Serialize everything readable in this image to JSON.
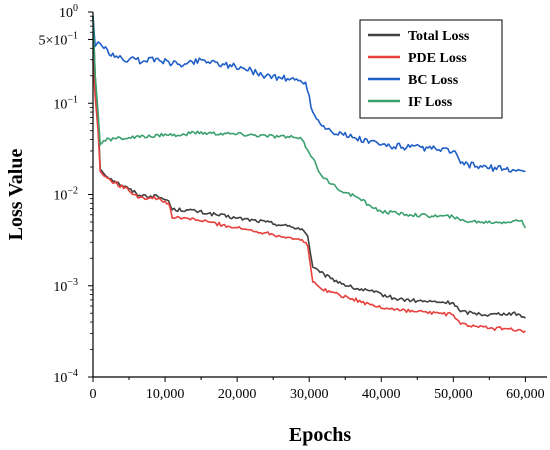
{
  "chart_data": {
    "type": "line",
    "title": "",
    "xlabel": "Epochs",
    "ylabel": "Loss Value",
    "xlim": [
      0,
      63000
    ],
    "ylim": [
      0.0001,
      1
    ],
    "yscale": "log",
    "grid": false,
    "legend_position": "top-right",
    "x_ticks": [
      {
        "value": 0,
        "label": "0"
      },
      {
        "value": 10000,
        "label": "10,000"
      },
      {
        "value": 20000,
        "label": "20,000"
      },
      {
        "value": 30000,
        "label": "30,000"
      },
      {
        "value": 40000,
        "label": "40,000"
      },
      {
        "value": 50000,
        "label": "50,000"
      },
      {
        "value": 60000,
        "label": "60,000"
      }
    ],
    "y_ticks": [
      {
        "value": 1,
        "label": "10",
        "exp": "0"
      },
      {
        "value": 0.5,
        "label": "5×10",
        "exp": "−1"
      },
      {
        "value": 0.1,
        "label": "10",
        "exp": "−1"
      },
      {
        "value": 0.01,
        "label": "10",
        "exp": "−2"
      },
      {
        "value": 0.001,
        "label": "10",
        "exp": "−3"
      },
      {
        "value": 0.0001,
        "label": "10",
        "exp": "−4"
      }
    ],
    "series": [
      {
        "name": "Total Loss",
        "color": "#404040",
        "x": [
          0,
          300,
          700,
          1000,
          1500,
          3000,
          5000,
          6500,
          9000,
          10500,
          11000,
          13000,
          16000,
          20000,
          24000,
          27000,
          29000,
          29800,
          30500,
          31500,
          33000,
          36000,
          39000,
          42000,
          45000,
          48000,
          50000,
          51000,
          53000,
          55000,
          57000,
          59000,
          60000
        ],
        "y": [
          0.9,
          0.2,
          0.07,
          0.019,
          0.017,
          0.014,
          0.0115,
          0.0098,
          0.0095,
          0.0085,
          0.0068,
          0.0068,
          0.0062,
          0.0055,
          0.005,
          0.0045,
          0.0042,
          0.0035,
          0.0016,
          0.0014,
          0.0012,
          0.00095,
          0.00085,
          0.00072,
          0.00068,
          0.00066,
          0.00065,
          0.00052,
          0.0005,
          0.00048,
          0.0005,
          0.00049,
          0.00044
        ]
      },
      {
        "name": "PDE Loss",
        "color": "#e8403c",
        "x": [
          0,
          300,
          700,
          1000,
          1500,
          3000,
          5000,
          6500,
          9000,
          10500,
          11000,
          13000,
          16000,
          20000,
          24000,
          27000,
          29000,
          29800,
          30500,
          31500,
          33000,
          36000,
          39000,
          42000,
          45000,
          48000,
          50000,
          51000,
          53000,
          55000,
          57000,
          59000,
          60000
        ],
        "y": [
          0.3,
          0.12,
          0.05,
          0.018,
          0.016,
          0.0135,
          0.011,
          0.0093,
          0.009,
          0.008,
          0.0055,
          0.0055,
          0.005,
          0.0043,
          0.0038,
          0.0034,
          0.0032,
          0.0027,
          0.0011,
          0.00095,
          0.00085,
          0.00072,
          0.0006,
          0.00055,
          0.00052,
          0.0005,
          0.00048,
          0.00038,
          0.00036,
          0.00034,
          0.00034,
          0.00033,
          0.00032
        ]
      },
      {
        "name": "BC Loss",
        "color": "#1f5fc7",
        "x": [
          0,
          300,
          700,
          1000,
          1500,
          3000,
          5000,
          7000,
          9000,
          11000,
          13000,
          15000,
          18000,
          21000,
          24000,
          26000,
          28000,
          29500,
          30500,
          31500,
          33000,
          36000,
          40000,
          44000,
          48000,
          50000,
          51000,
          54000,
          57000,
          60000
        ],
        "y": [
          0.9,
          0.42,
          0.47,
          0.45,
          0.4,
          0.32,
          0.3,
          0.29,
          0.31,
          0.27,
          0.27,
          0.3,
          0.27,
          0.24,
          0.2,
          0.19,
          0.18,
          0.17,
          0.08,
          0.06,
          0.05,
          0.042,
          0.035,
          0.033,
          0.031,
          0.03,
          0.022,
          0.02,
          0.019,
          0.018
        ]
      },
      {
        "name": "IF Loss",
        "color": "#3aa06e",
        "x": [
          0,
          300,
          700,
          1000,
          1500,
          3000,
          5000,
          8000,
          10000,
          12000,
          14000,
          16000,
          20000,
          24000,
          28000,
          29000,
          30500,
          31500,
          33000,
          35000,
          37000,
          38500,
          40000,
          44000,
          48000,
          50000,
          51000,
          54000,
          57000,
          59500,
          60000
        ],
        "y": [
          0.9,
          0.2,
          0.08,
          0.035,
          0.039,
          0.041,
          0.042,
          0.043,
          0.046,
          0.044,
          0.048,
          0.047,
          0.046,
          0.044,
          0.042,
          0.04,
          0.025,
          0.017,
          0.013,
          0.0105,
          0.009,
          0.0075,
          0.0065,
          0.006,
          0.0058,
          0.0057,
          0.0052,
          0.005,
          0.005,
          0.0052,
          0.0043
        ]
      }
    ]
  }
}
